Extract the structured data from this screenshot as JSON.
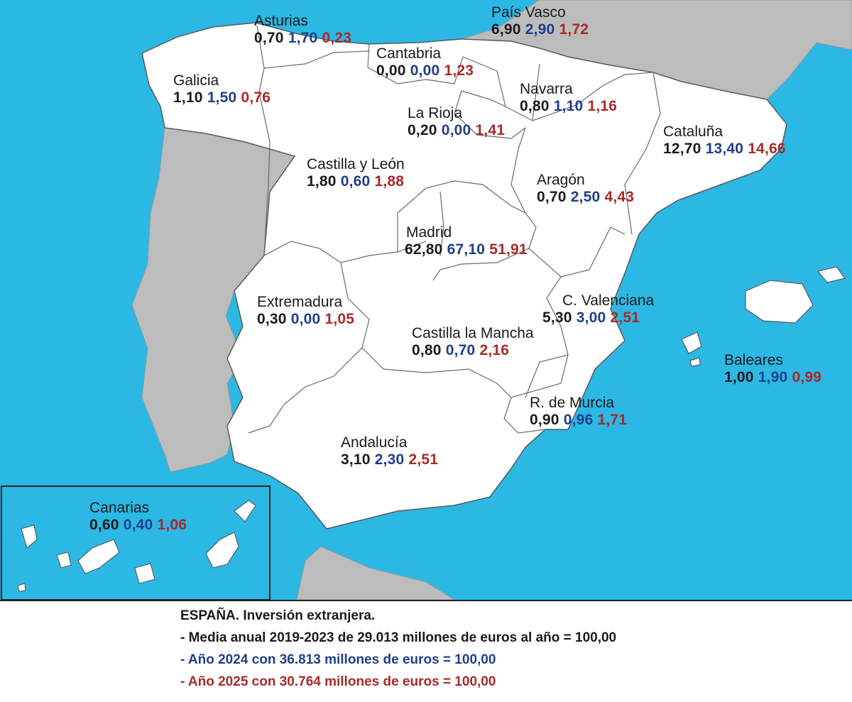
{
  "colors": {
    "sea": "#2bb8e4",
    "land_spain": "#ffffff",
    "land_other": "#bcbcbc",
    "border": "#5a5a5a",
    "series_2019_2023": "#1a1a1a",
    "series_2024": "#1f3f8a",
    "series_2025": "#a82a2a"
  },
  "regions": [
    {
      "name": "Asturias",
      "v1": "0,70",
      "v2": "1,70",
      "v3": "0,23"
    },
    {
      "name": "País Vasco",
      "v1": "6,90",
      "v2": "2,90",
      "v3": "1,72"
    },
    {
      "name": "Cantabria",
      "v1": "0,00",
      "v2": "0,00",
      "v3": "1,23"
    },
    {
      "name": "Galicia",
      "v1": "1,10",
      "v2": "1,50",
      "v3": "0,76"
    },
    {
      "name": "Navarra",
      "v1": "0,80",
      "v2": "1,10",
      "v3": "1,16"
    },
    {
      "name": "La Rioja",
      "v1": "0,20",
      "v2": "0,00",
      "v3": "1,41"
    },
    {
      "name": "Cataluña",
      "v1": "12,70",
      "v2": "13,40",
      "v3": "14,66"
    },
    {
      "name": "Castilla y León",
      "v1": "1,80",
      "v2": "0,60",
      "v3": "1,88"
    },
    {
      "name": "Aragón",
      "v1": "0,70",
      "v2": "2,50",
      "v3": "4,43"
    },
    {
      "name": "Madrid",
      "v1": "62,80",
      "v2": "67,10",
      "v3": "51,91"
    },
    {
      "name": "Extremadura",
      "v1": "0,30",
      "v2": "0,00",
      "v3": "1,05"
    },
    {
      "name": "C. Valenciana",
      "v1": "5,30",
      "v2": "3,00",
      "v3": "2,51"
    },
    {
      "name": "Castilla la Mancha",
      "v1": "0,80",
      "v2": "0,70",
      "v3": "2,16"
    },
    {
      "name": "Baleares",
      "v1": "1,00",
      "v2": "1,90",
      "v3": "0,99"
    },
    {
      "name": "R. de Murcia",
      "v1": "0,90",
      "v2": "0,96",
      "v3": "1,71"
    },
    {
      "name": "Andalucía",
      "v1": "3,10",
      "v2": "2,30",
      "v3": "2,51"
    },
    {
      "name": "Canarias",
      "v1": "0,60",
      "v2": "0,40",
      "v3": "1,06"
    }
  ],
  "legend": {
    "title": "ESPAÑA. Inversión extranjera.",
    "line1": "- Media anual 2019-2023 de 29.013 millones de euros al año = 100,00",
    "line2": "- Año 2024 con 36.813 millones de euros = 100,00",
    "line3": "- Año 2025 con 30.764 millones de euros = 100,00"
  }
}
